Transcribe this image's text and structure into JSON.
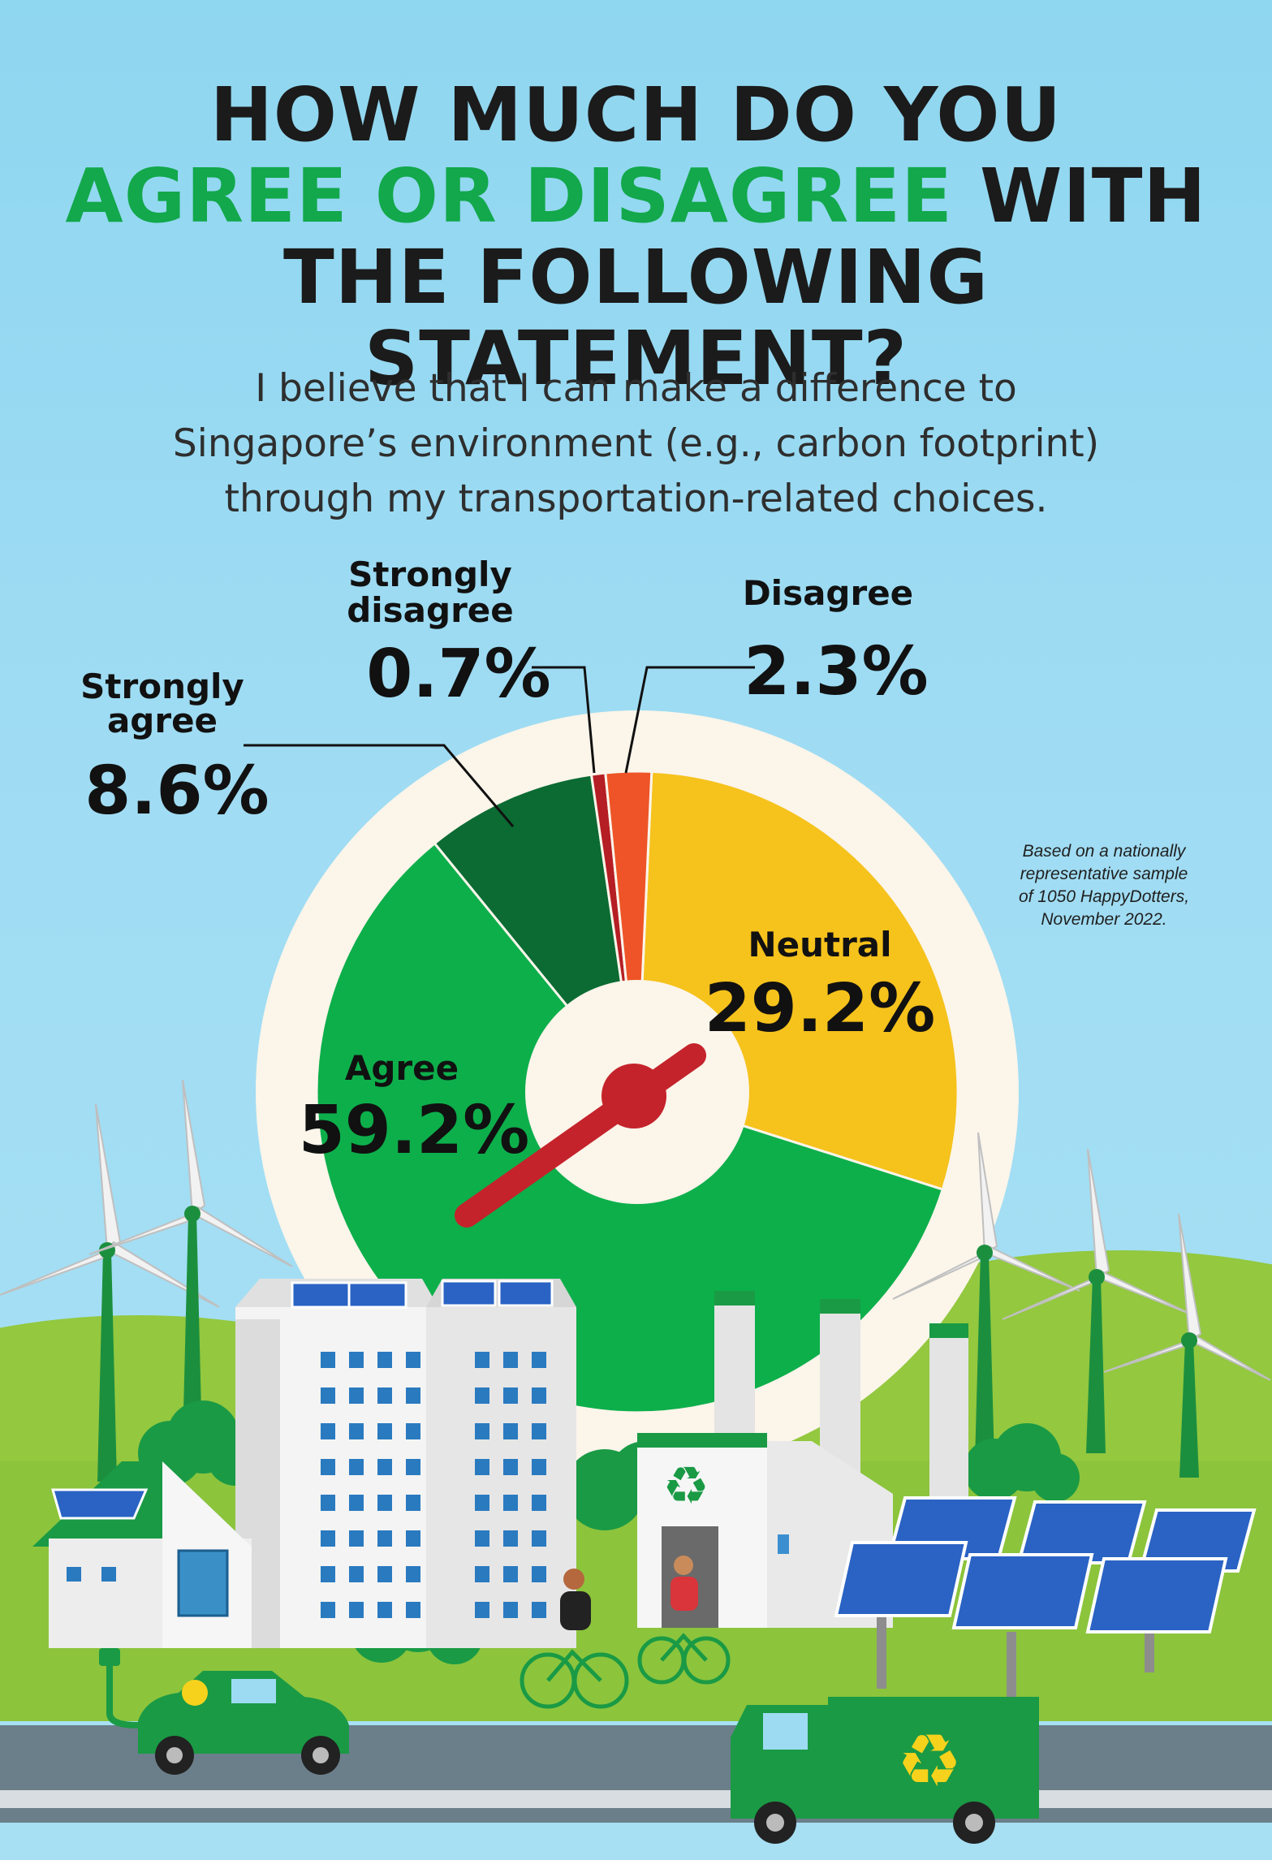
{
  "title": {
    "line1": "HOW MUCH DO YOU",
    "line2_accent": "AGREE OR DISAGREE",
    "line2_rest": " WITH",
    "line3": "THE FOLLOWING STATEMENT?"
  },
  "statement": {
    "line1": "I believe that I can make a difference to",
    "line2": "Singapore’s environment (e.g., carbon footprint)",
    "line3": "through my transportation-related choices."
  },
  "note": "Based on a nationally representative sample of 1050 HappyDotters, November 2022.",
  "colors": {
    "neutral": "#f6c21c",
    "agree": "#0daf4b",
    "strongly_agree": "#0b6b33",
    "strongly_disagree": "#b51e24",
    "disagree": "#ee5427",
    "ring": "#fbf5ea",
    "needle": "#c4232b"
  },
  "chart_data": {
    "type": "pie",
    "title": "HOW MUCH DO YOU AGREE OR DISAGREE WITH THE FOLLOWING STATEMENT?",
    "categories": [
      "Neutral",
      "Agree",
      "Strongly agree",
      "Strongly disagree",
      "Disagree"
    ],
    "values": [
      29.2,
      59.2,
      8.6,
      0.7,
      2.3
    ],
    "value_labels": [
      "29.2%",
      "59.2%",
      "8.6%",
      "0.7%",
      "2.3%"
    ],
    "label_lines": [
      [
        "Neutral"
      ],
      [
        "Agree"
      ],
      [
        "Strongly",
        "agree"
      ],
      [
        "Strongly",
        "disagree"
      ],
      [
        "Disagree"
      ]
    ],
    "unit": "%"
  }
}
